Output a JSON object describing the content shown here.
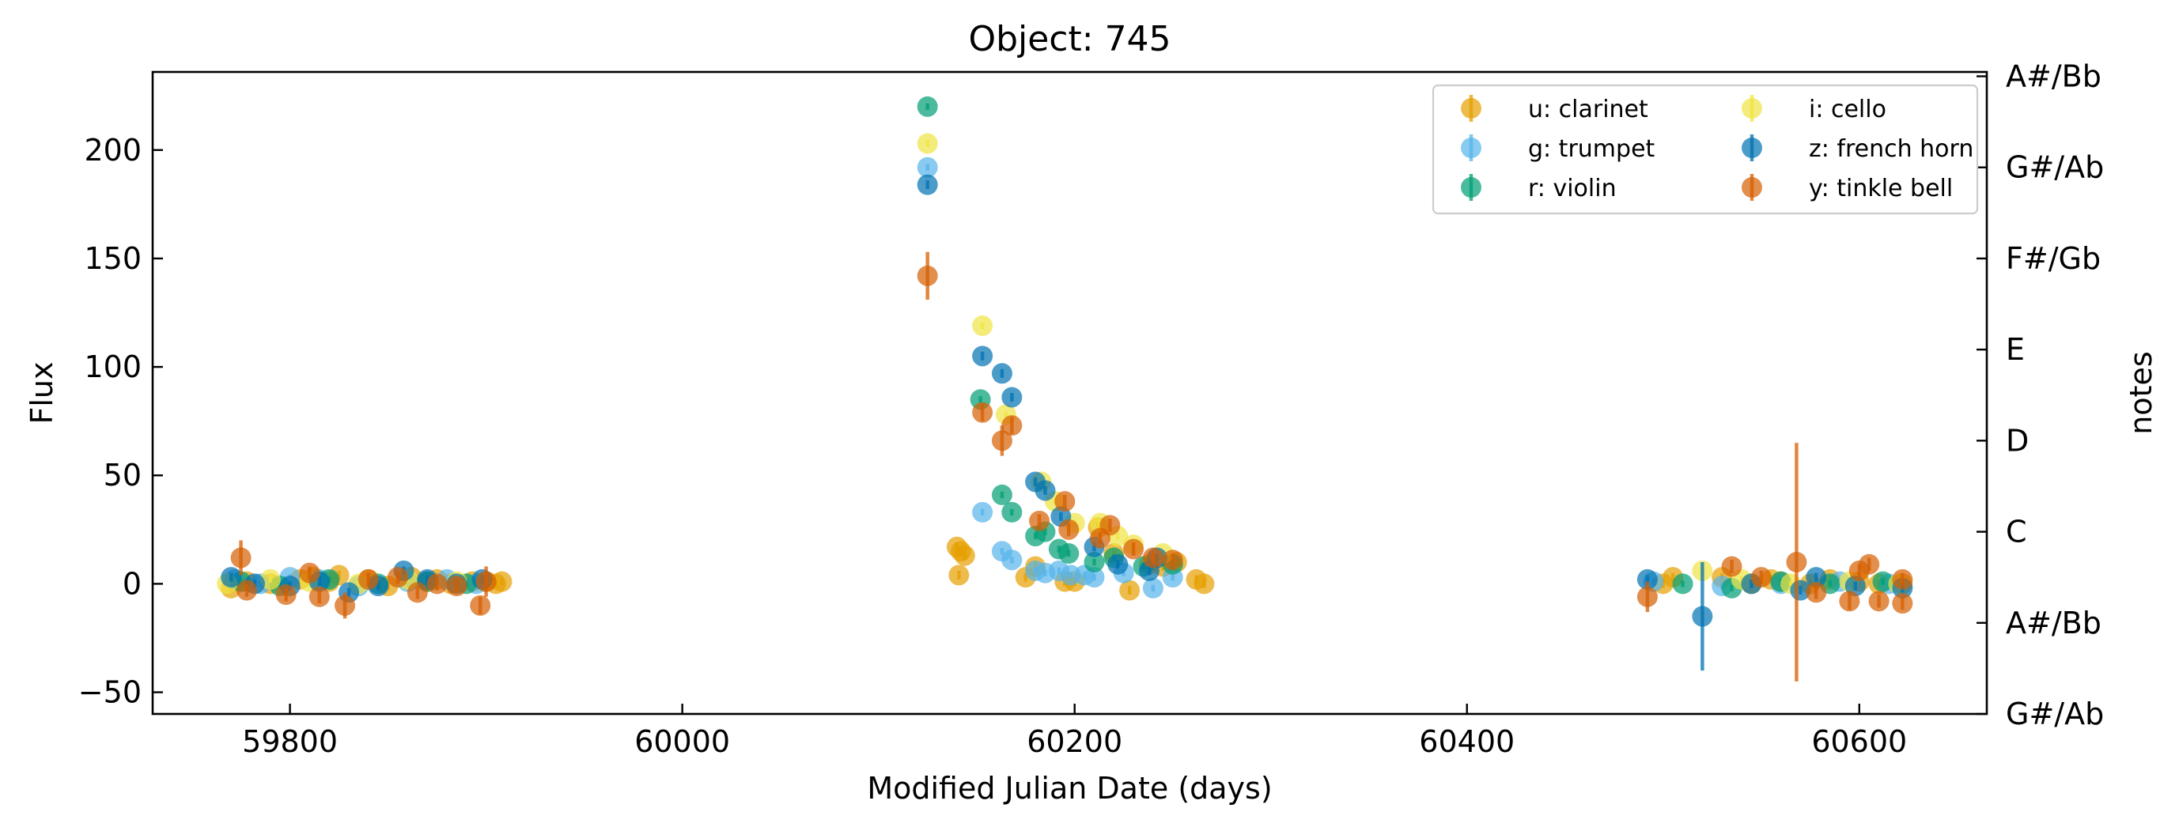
{
  "chart_data": {
    "type": "scatter",
    "title": "Object: 745",
    "xlabel": "Modified Julian Date (days)",
    "ylabel": "Flux",
    "ylabel_right": "notes",
    "xlim": [
      59730,
      60665
    ],
    "ylim": [
      -60,
      236
    ],
    "x_ticks": [
      59800,
      60000,
      60200,
      60400,
      60600
    ],
    "y_ticks": [
      -50,
      0,
      50,
      100,
      150,
      200
    ],
    "y_tick_labels": [
      "−50",
      "0",
      "50",
      "100",
      "150",
      "200"
    ],
    "right_ticks": [
      {
        "value": 234.0,
        "label": "A#/Bb"
      },
      {
        "value": 192.0,
        "label": "G#/Ab"
      },
      {
        "value": 150.0,
        "label": "F#/Gb"
      },
      {
        "value": 108.0,
        "label": "E"
      },
      {
        "value": 66.0,
        "label": "D"
      },
      {
        "value": 24.0,
        "label": "C"
      },
      {
        "value": -18.0,
        "label": "A#/Bb"
      },
      {
        "value": -60.0,
        "label": "G#/Ab"
      }
    ],
    "grid": false,
    "legend_position": "top-right",
    "legend_columns": 2,
    "series": [
      {
        "name": "u: clarinet",
        "color": "#E69F00",
        "points": [
          [
            59770,
            -2,
            2
          ],
          [
            59778,
            1,
            2
          ],
          [
            59790,
            0,
            2
          ],
          [
            59805,
            2,
            2
          ],
          [
            59812,
            3,
            2
          ],
          [
            59820,
            1,
            2
          ],
          [
            59825,
            4,
            2
          ],
          [
            59840,
            2,
            2
          ],
          [
            59850,
            -1,
            2
          ],
          [
            59862,
            3,
            2
          ],
          [
            59870,
            1,
            2
          ],
          [
            59875,
            2,
            2
          ],
          [
            59882,
            0,
            2
          ],
          [
            59893,
            1,
            2
          ],
          [
            59900,
            1,
            2
          ],
          [
            59905,
            0,
            2
          ],
          [
            59908,
            1,
            2
          ],
          [
            60140,
            17,
            2
          ],
          [
            60142,
            15,
            2
          ],
          [
            60144,
            13,
            2
          ],
          [
            60141,
            4,
            2
          ],
          [
            60175,
            3,
            2
          ],
          [
            60180,
            8,
            2
          ],
          [
            60195,
            1,
            2
          ],
          [
            60200,
            1,
            2
          ],
          [
            60212,
            26,
            2
          ],
          [
            60220,
            14,
            2
          ],
          [
            60228,
            -3,
            2
          ],
          [
            60238,
            9,
            2
          ],
          [
            60245,
            8,
            2
          ],
          [
            60252,
            10,
            2
          ],
          [
            60262,
            2,
            2
          ],
          [
            60266,
            0,
            2
          ],
          [
            60500,
            0,
            2
          ],
          [
            60505,
            3,
            2
          ],
          [
            60530,
            3,
            2
          ],
          [
            60545,
            0,
            2
          ],
          [
            60555,
            2,
            2
          ],
          [
            60560,
            1,
            2
          ],
          [
            60575,
            0,
            2
          ],
          [
            60585,
            2,
            2
          ],
          [
            60600,
            1,
            2
          ],
          [
            60610,
            0,
            2
          ],
          [
            60622,
            0,
            2
          ]
        ]
      },
      {
        "name": "g: trumpet",
        "color": "#56B4E9",
        "points": [
          [
            59772,
            2,
            1.5
          ],
          [
            59785,
            0,
            1.5
          ],
          [
            59800,
            3,
            1.5
          ],
          [
            59815,
            2,
            1.5
          ],
          [
            59835,
            -1,
            1.5
          ],
          [
            59860,
            1,
            1.5
          ],
          [
            59880,
            2,
            1.5
          ],
          [
            59895,
            0,
            1.5
          ],
          [
            60125,
            192,
            1.5
          ],
          [
            60153,
            33,
            1.5
          ],
          [
            60163,
            15,
            1.5
          ],
          [
            60168,
            11,
            1.5
          ],
          [
            60180,
            6,
            1.5
          ],
          [
            60185,
            5,
            1.5
          ],
          [
            60192,
            6,
            1.5
          ],
          [
            60198,
            4,
            1.5
          ],
          [
            60205,
            4,
            1.5
          ],
          [
            60210,
            3,
            1.5
          ],
          [
            60225,
            5,
            1.5
          ],
          [
            60240,
            -2,
            1.5
          ],
          [
            60250,
            3,
            1.5
          ],
          [
            60495,
            1,
            1.5
          ],
          [
            60530,
            -1,
            1.5
          ],
          [
            60560,
            0,
            1.5
          ],
          [
            60590,
            1,
            1.5
          ],
          [
            60615,
            0,
            1.5
          ]
        ]
      },
      {
        "name": "r: violin",
        "color": "#009E73",
        "points": [
          [
            59775,
            1,
            1.5
          ],
          [
            59795,
            -1,
            1.5
          ],
          [
            59820,
            2,
            1.5
          ],
          [
            59845,
            0,
            1.5
          ],
          [
            59870,
            1,
            1.5
          ],
          [
            59890,
            0,
            1.5
          ],
          [
            60125,
            220,
            1.5
          ],
          [
            60152,
            85,
            1.5
          ],
          [
            60163,
            41,
            1.5
          ],
          [
            60168,
            33,
            1.5
          ],
          [
            60180,
            22,
            1.5
          ],
          [
            60185,
            24,
            1.5
          ],
          [
            60192,
            16,
            1.5
          ],
          [
            60197,
            14,
            1.5
          ],
          [
            60210,
            10,
            1.5
          ],
          [
            60220,
            12,
            1.5
          ],
          [
            60235,
            8,
            1.5
          ],
          [
            60250,
            9,
            1.5
          ],
          [
            60510,
            0,
            1.5
          ],
          [
            60535,
            -2,
            1.5
          ],
          [
            60560,
            1,
            1.5
          ],
          [
            60585,
            0,
            1.5
          ],
          [
            60612,
            1,
            1.5
          ]
        ]
      },
      {
        "name": "i: cello",
        "color": "#F0E442",
        "points": [
          [
            59768,
            0,
            1.5
          ],
          [
            59790,
            2,
            1.5
          ],
          [
            59810,
            1,
            1.5
          ],
          [
            59835,
            0,
            1.5
          ],
          [
            59860,
            2,
            1.5
          ],
          [
            59885,
            1,
            1.5
          ],
          [
            60125,
            203,
            1.5
          ],
          [
            60153,
            119,
            1.5
          ],
          [
            60165,
            78,
            1.5
          ],
          [
            60183,
            47,
            1.5
          ],
          [
            60190,
            38,
            1.5
          ],
          [
            60200,
            28,
            1.5
          ],
          [
            60213,
            28,
            1.5
          ],
          [
            60222,
            22,
            1.5
          ],
          [
            60230,
            18,
            1.5
          ],
          [
            60245,
            14,
            1.5
          ],
          [
            60520,
            6,
            1.5
          ],
          [
            60540,
            2,
            1.5
          ],
          [
            60565,
            0,
            1.5
          ],
          [
            60595,
            1,
            1.5
          ],
          [
            60620,
            0,
            1.5
          ]
        ]
      },
      {
        "name": "z: french horn",
        "color": "#0072B2",
        "points": [
          [
            59770,
            3,
            2
          ],
          [
            59782,
            0,
            2
          ],
          [
            59800,
            -1,
            2
          ],
          [
            59815,
            1,
            2
          ],
          [
            59830,
            -4,
            2
          ],
          [
            59845,
            -1,
            2
          ],
          [
            59858,
            6,
            2
          ],
          [
            59870,
            2,
            2
          ],
          [
            59885,
            0,
            2
          ],
          [
            59898,
            2,
            2
          ],
          [
            60125,
            184,
            2
          ],
          [
            60153,
            105,
            2
          ],
          [
            60163,
            97,
            2
          ],
          [
            60168,
            86,
            2
          ],
          [
            60180,
            47,
            2
          ],
          [
            60185,
            43,
            2
          ],
          [
            60193,
            31,
            2
          ],
          [
            60210,
            17,
            2
          ],
          [
            60222,
            9,
            2
          ],
          [
            60238,
            6,
            2
          ],
          [
            60242,
            12,
            2
          ],
          [
            60492,
            2,
            2
          ],
          [
            60520,
            -15,
            25
          ],
          [
            60545,
            0,
            2
          ],
          [
            60570,
            -3,
            2
          ],
          [
            60578,
            3,
            2
          ],
          [
            60598,
            -1,
            2
          ],
          [
            60622,
            -2,
            2
          ]
        ]
      },
      {
        "name": "y: tinkle bell",
        "color": "#D55E00",
        "points": [
          [
            59775,
            12,
            8
          ],
          [
            59778,
            -3,
            3
          ],
          [
            59798,
            -5,
            3
          ],
          [
            59810,
            5,
            3
          ],
          [
            59815,
            -6,
            3
          ],
          [
            59828,
            -10,
            6
          ],
          [
            59840,
            2,
            3
          ],
          [
            59855,
            3,
            3
          ],
          [
            59865,
            -4,
            3
          ],
          [
            59875,
            0,
            3
          ],
          [
            59885,
            -1,
            3
          ],
          [
            59897,
            -10,
            4
          ],
          [
            59900,
            1,
            7
          ],
          [
            60125,
            142,
            11
          ],
          [
            60153,
            79,
            4
          ],
          [
            60163,
            66,
            7
          ],
          [
            60168,
            73,
            4
          ],
          [
            60182,
            29,
            3
          ],
          [
            60195,
            38,
            3
          ],
          [
            60197,
            25,
            3
          ],
          [
            60213,
            21,
            3
          ],
          [
            60218,
            27,
            3
          ],
          [
            60230,
            16,
            3
          ],
          [
            60240,
            12,
            3
          ],
          [
            60250,
            11,
            3
          ],
          [
            60492,
            -6,
            7
          ],
          [
            60535,
            8,
            3
          ],
          [
            60550,
            3,
            3
          ],
          [
            60568,
            10,
            55
          ],
          [
            60578,
            -4,
            3
          ],
          [
            60595,
            -8,
            4
          ],
          [
            60600,
            6,
            3
          ],
          [
            60605,
            9,
            3
          ],
          [
            60610,
            -8,
            3
          ],
          [
            60622,
            2,
            3
          ],
          [
            60622,
            -9,
            3
          ]
        ]
      }
    ]
  }
}
